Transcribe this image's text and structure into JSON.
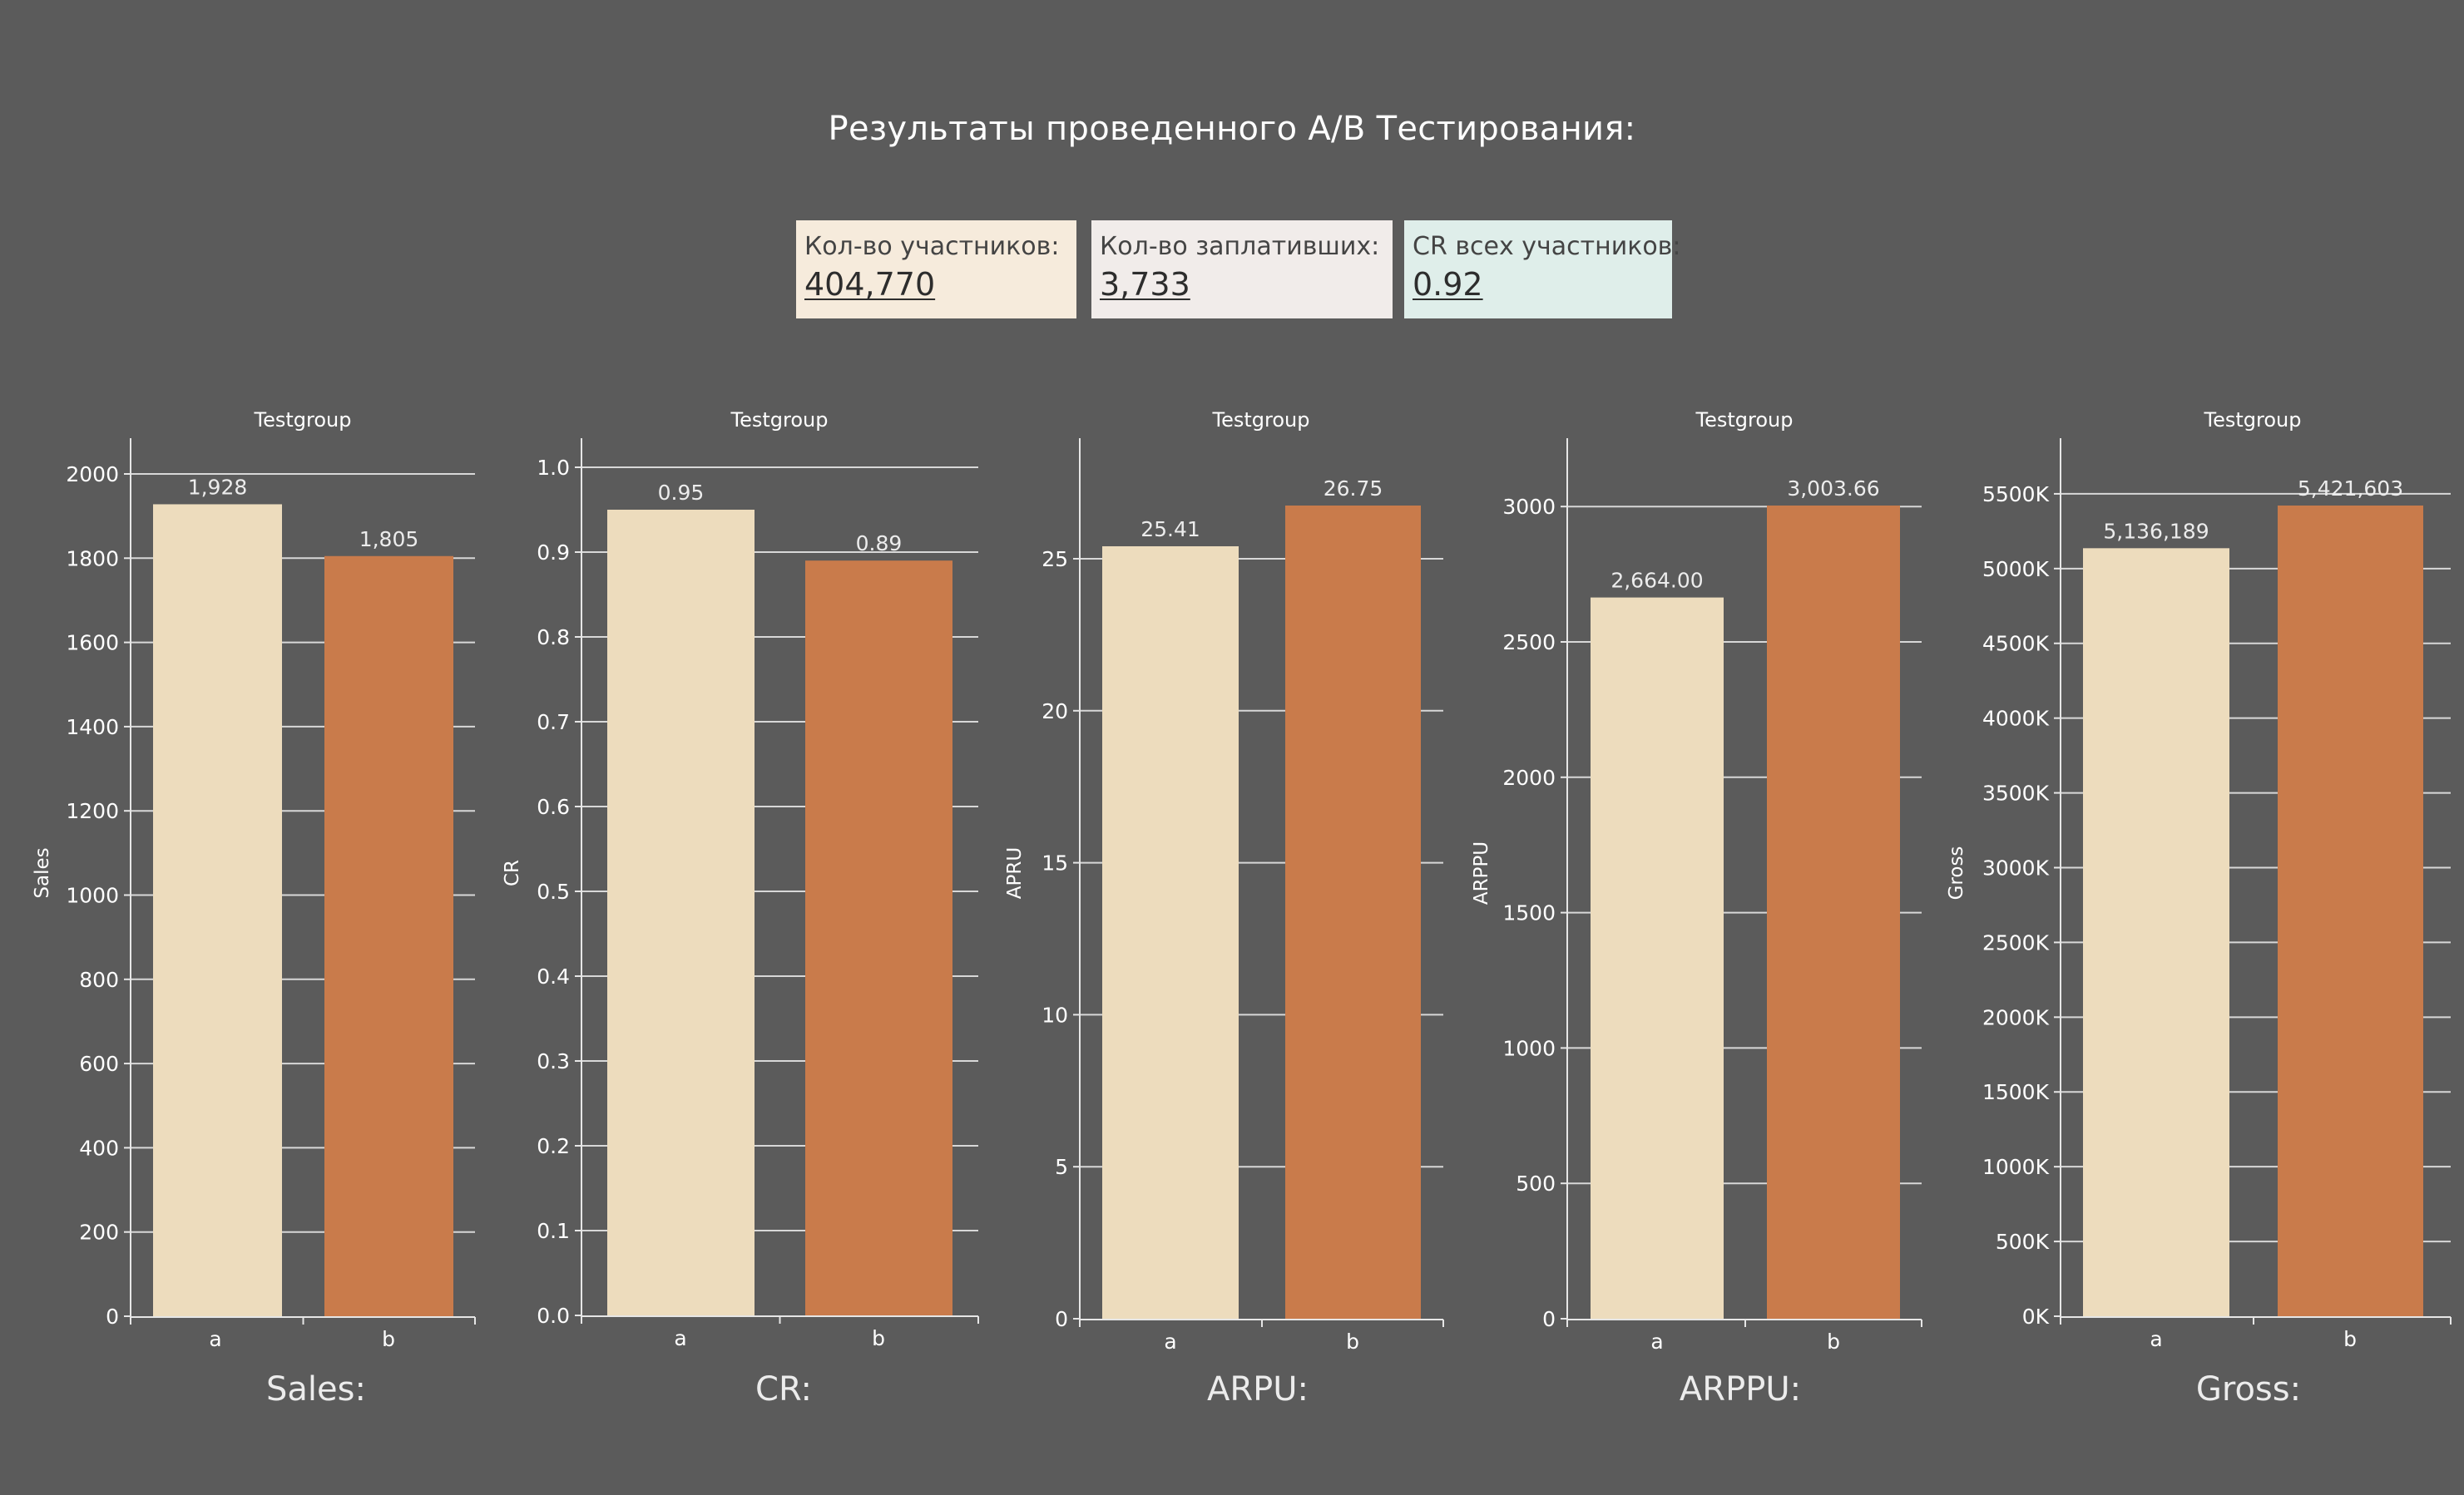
{
  "title": "Результаты проведенного A/B Тестирования:",
  "kpis": [
    {
      "label": "Кол-во участников:",
      "value": "404,770",
      "color": "#f6ebdc"
    },
    {
      "label": "Кол-во заплативших:",
      "value": "3,733",
      "color": "#f1ecea"
    },
    {
      "label": "CR  всех участников:",
      "value": "0.92",
      "color": "#dfeeea"
    }
  ],
  "colors": {
    "background": "#5b5b5b",
    "group_a": "#eddcbd",
    "group_b": "#c97b4b",
    "axis": "#e6e6e6",
    "text": "#ffffff"
  },
  "chart_data": [
    {
      "type": "bar",
      "header": "Testgroup",
      "title": "Sales:",
      "xlabel": "",
      "ylabel": "Sales",
      "categories": [
        "a",
        "b"
      ],
      "values": [
        1928,
        1805
      ],
      "data_labels": [
        "1,928",
        "1,805"
      ],
      "ylim": [
        0,
        2000
      ],
      "yticks": [
        0,
        200,
        400,
        600,
        800,
        1000,
        1200,
        1400,
        1600,
        1800,
        2000
      ],
      "ytick_labels": [
        "0",
        "200",
        "400",
        "600",
        "800",
        "1000",
        "1200",
        "1400",
        "1600",
        "1800",
        "2000"
      ],
      "grid": true
    },
    {
      "type": "bar",
      "header": "Testgroup",
      "title": "CR:",
      "xlabel": "",
      "ylabel": "CR",
      "categories": [
        "a",
        "b"
      ],
      "values": [
        0.95,
        0.89
      ],
      "data_labels": [
        "0.95",
        "0.89"
      ],
      "ylim": [
        0,
        1.0
      ],
      "yticks": [
        0,
        0.1,
        0.2,
        0.3,
        0.4,
        0.5,
        0.6,
        0.7,
        0.8,
        0.9,
        1.0
      ],
      "ytick_labels": [
        "0.0",
        "0.1",
        "0.2",
        "0.3",
        "0.4",
        "0.5",
        "0.6",
        "0.7",
        "0.8",
        "0.9",
        "1.0"
      ],
      "grid": true
    },
    {
      "type": "bar",
      "header": "Testgroup",
      "title": "ARPU:",
      "xlabel": "",
      "ylabel": "APRU",
      "categories": [
        "a",
        "b"
      ],
      "values": [
        25.41,
        26.75
      ],
      "data_labels": [
        "25.41",
        "26.75"
      ],
      "ylim": [
        0,
        26.75
      ],
      "yticks": [
        0,
        5,
        10,
        15,
        20,
        25
      ],
      "ytick_labels": [
        "0",
        "5",
        "10",
        "15",
        "20",
        "25"
      ],
      "grid": true
    },
    {
      "type": "bar",
      "header": "Testgroup",
      "title": "ARPPU:",
      "xlabel": "",
      "ylabel": "ARPPU",
      "categories": [
        "a",
        "b"
      ],
      "values": [
        2664.0,
        3003.66
      ],
      "data_labels": [
        "2,664.00",
        "3,003.66"
      ],
      "ylim": [
        0,
        3003.66
      ],
      "yticks": [
        0,
        500,
        1000,
        1500,
        2000,
        2500,
        3000
      ],
      "ytick_labels": [
        "0",
        "500",
        "1000",
        "1500",
        "2000",
        "2500",
        "3000"
      ],
      "grid": true
    },
    {
      "type": "bar",
      "header": "Testgroup",
      "title": "Gross:",
      "xlabel": "",
      "ylabel": "Gross",
      "categories": [
        "a",
        "b"
      ],
      "values": [
        5136189,
        5421603
      ],
      "data_labels": [
        "5,136,189",
        "5,421,603"
      ],
      "ylim": [
        0,
        5421603
      ],
      "yticks": [
        0,
        500000,
        1000000,
        1500000,
        2000000,
        2500000,
        3000000,
        3500000,
        4000000,
        4500000,
        5000000,
        5500000
      ],
      "ytick_labels": [
        "0K",
        "500K",
        "1000K",
        "1500K",
        "2000K",
        "2500K",
        "3000K",
        "3500K",
        "4000K",
        "4500K",
        "5000K",
        "5500K"
      ],
      "grid": true
    }
  ]
}
